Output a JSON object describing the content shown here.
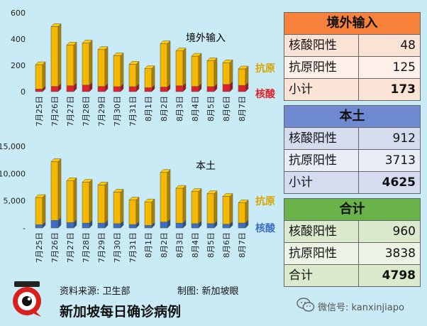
{
  "chart_data": [
    {
      "type": "bar",
      "title": "境外输入",
      "stacked": true,
      "categories": [
        "7月25日",
        "7月26日",
        "7月27日",
        "7月28日",
        "7月29日",
        "7月30日",
        "7月31日",
        "8月1日",
        "8月2日",
        "8月3日",
        "8月4日",
        "8月5日",
        "8月6日",
        "8月7日"
      ],
      "series": [
        {
          "name": "核酸",
          "color": "#e0202a",
          "values": [
            20,
            40,
            45,
            50,
            40,
            38,
            38,
            30,
            35,
            45,
            40,
            38,
            55,
            48
          ]
        },
        {
          "name": "抗原",
          "color": "#f5b800",
          "values": [
            185,
            455,
            310,
            320,
            280,
            235,
            170,
            145,
            330,
            265,
            230,
            197,
            165,
            125
          ]
        }
      ],
      "ylim": [
        0,
        600
      ],
      "yticks": [
        "0",
        "200",
        "400",
        "600"
      ]
    },
    {
      "type": "bar",
      "title": "本土",
      "stacked": true,
      "categories": [
        "7月25日",
        "7月26日",
        "7月27日",
        "7月28日",
        "7月29日",
        "7月30日",
        "7月31日",
        "8月1日",
        "8月2日",
        "8月3日",
        "8月4日",
        "8月5日",
        "8月6日",
        "8月7日"
      ],
      "series": [
        {
          "name": "核酸",
          "color": "#3c6fc4",
          "values": [
            600,
            1400,
            1000,
            900,
            900,
            800,
            650,
            500,
            1100,
            900,
            800,
            800,
            700,
            912
          ]
        },
        {
          "name": "抗原",
          "color": "#f5b800",
          "values": [
            5000,
            10800,
            7700,
            7500,
            7000,
            5800,
            4500,
            4300,
            9100,
            6400,
            5900,
            5500,
            5100,
            3713
          ]
        }
      ],
      "ylim": [
        0,
        15000
      ],
      "yticks": [
        "-",
        "5,000",
        "10,000",
        "15,000"
      ]
    }
  ],
  "tables": {
    "overseas": {
      "title": "境外输入",
      "rows": [
        {
          "label": "核酸阳性",
          "value": "48"
        },
        {
          "label": "抗原阳性",
          "value": "125"
        }
      ],
      "total": {
        "label": "小计",
        "value": "173"
      }
    },
    "local": {
      "title": "本土",
      "rows": [
        {
          "label": "核酸阳性",
          "value": "912"
        },
        {
          "label": "抗原阳性",
          "value": "3713"
        }
      ],
      "total": {
        "label": "小计",
        "value": "4625"
      }
    },
    "combined": {
      "title": "合计",
      "rows": [
        {
          "label": "核酸阳性",
          "value": "960"
        },
        {
          "label": "抗原阳性",
          "value": "3838"
        }
      ],
      "total": {
        "label": "合计",
        "value": "4798"
      }
    }
  },
  "footer": {
    "source": "资料来源:   卫生部",
    "credit": "制图:   新加坡眼",
    "title": "新加坡每日确诊病例",
    "wechat": "微信号: kanxinjiapo"
  }
}
